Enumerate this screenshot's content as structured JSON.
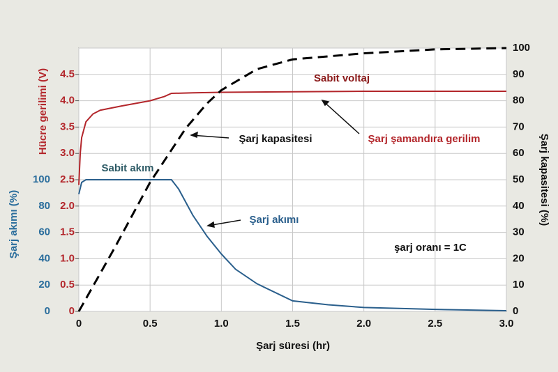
{
  "chart_data": {
    "type": "line",
    "x_label": "Şarj süresi  (hr)",
    "y_label": "Hücre gerilimi (V)",
    "y2_label": "Şarj kapasitesi  (%)",
    "y3_label": "Şarj akımı  (%)",
    "xlim": [
      0,
      3
    ],
    "xticks": [
      0,
      0.5,
      {
        "value": 1,
        "label": "1.0"
      },
      1.5,
      {
        "value": 2,
        "label": "2.0"
      },
      2.5,
      {
        "value": 3,
        "label": "3.0"
      }
    ],
    "ylim": [
      0,
      5
    ],
    "yticks": [
      0,
      0.5,
      {
        "value": 1,
        "label": "1.0"
      },
      1.5,
      {
        "value": 2,
        "label": "2.0"
      },
      2.5,
      {
        "value": 3,
        "label": "3.0"
      },
      3.5,
      {
        "value": 4,
        "label": "4.0"
      },
      4.5
    ],
    "y2lim": [
      0,
      100
    ],
    "y2ticks": [
      0,
      10,
      20,
      30,
      40,
      50,
      60,
      70,
      80,
      90,
      100
    ],
    "y3lim": [
      0,
      200
    ],
    "y3ticks": [
      0,
      20,
      40,
      60,
      80,
      100
    ],
    "grid": true,
    "series": [
      {
        "name": "Hücre gerilimi",
        "color": "#b3262b",
        "axis": "y",
        "x": [
          0,
          0.01,
          0.02,
          0.05,
          0.1,
          0.15,
          0.3,
          0.5,
          0.6,
          0.65,
          0.8,
          1.0,
          1.5,
          2.0,
          2.5,
          3.0
        ],
        "values": [
          2.4,
          3.0,
          3.3,
          3.6,
          3.75,
          3.82,
          3.9,
          4.0,
          4.08,
          4.14,
          4.15,
          4.16,
          4.17,
          4.18,
          4.18,
          4.18
        ]
      },
      {
        "name": "Şarj kapasitesi",
        "color": "#000000",
        "axis": "y2",
        "dashed": true,
        "x": [
          0,
          0.25,
          0.5,
          0.75,
          0.9,
          1.0,
          1.25,
          1.5,
          2.0,
          2.5,
          3.0
        ],
        "values": [
          0,
          24,
          49,
          69.5,
          79,
          84,
          92,
          95.7,
          98,
          99.5,
          100
        ]
      },
      {
        "name": "Şarj akımı",
        "color": "#2a5f8c",
        "axis": "y3",
        "x": [
          0,
          0.02,
          0.05,
          0.65,
          0.7,
          0.8,
          0.9,
          1.0,
          1.1,
          1.25,
          1.5,
          1.75,
          2.0,
          2.5,
          3.0
        ],
        "values": [
          89,
          98,
          100,
          100,
          93,
          73,
          57,
          43.6,
          32,
          21,
          8,
          5,
          3,
          1.5,
          0.5
        ]
      }
    ],
    "annotations": [
      {
        "text": "Sabit voltaj",
        "color": "#8b1a1a"
      },
      {
        "text": "Şarj kapasitesi",
        "color": "#111111"
      },
      {
        "text": "Şarj şamandıra gerilim",
        "color": "#b3262b"
      },
      {
        "text": "Sabit akım",
        "color": "#2e5b66"
      },
      {
        "text": "Şarj akımı",
        "color": "#2a5f8c"
      },
      {
        "text": "şarj oranı    = 1C",
        "color": "#111111"
      }
    ]
  }
}
